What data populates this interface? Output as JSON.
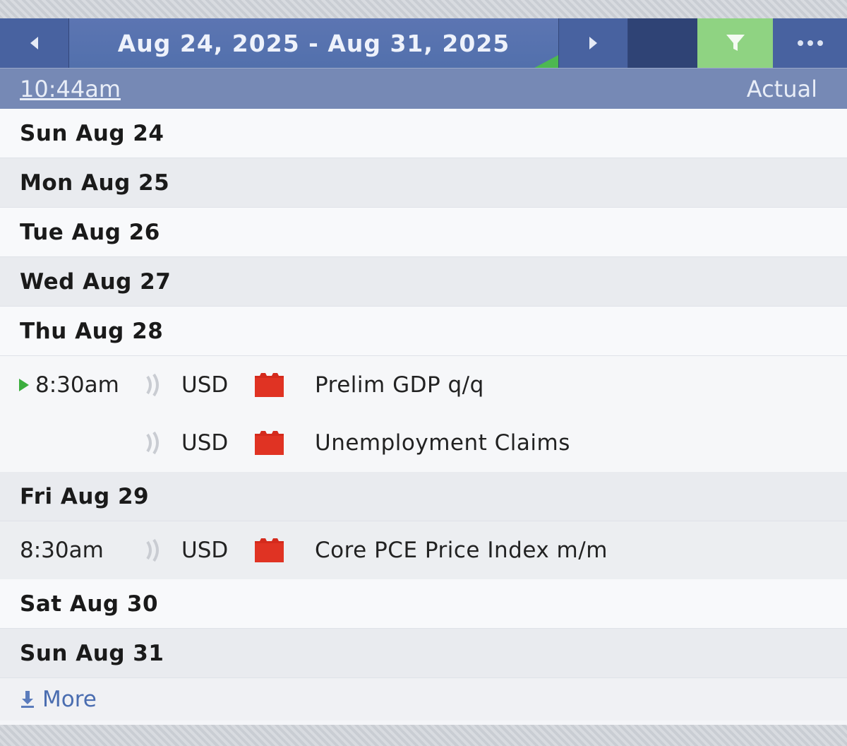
{
  "header": {
    "date_range": "Aug 24, 2025 - Aug 31, 2025",
    "icons": [
      "left-arrow-icon",
      "right-arrow-icon",
      "filter-icon",
      "more-dots-icon"
    ]
  },
  "subheader": {
    "current_time": "10:44am",
    "column_label": "Actual"
  },
  "days": [
    {
      "label": "Sun Aug 24"
    },
    {
      "label": "Mon Aug 25"
    },
    {
      "label": "Tue Aug 26"
    },
    {
      "label": "Wed Aug 27"
    },
    {
      "label": "Thu Aug 28"
    },
    {
      "label": "Fri Aug 29"
    },
    {
      "label": "Sat Aug 30"
    },
    {
      "label": "Sun Aug 31"
    }
  ],
  "events": [
    {
      "day": "Thu Aug 28",
      "time": "8:30am",
      "currency": "USD",
      "impact": "high",
      "title": "Prelim GDP q/q"
    },
    {
      "day": "Thu Aug 28",
      "time": "",
      "currency": "USD",
      "impact": "high",
      "title": "Unemployment Claims"
    },
    {
      "day": "Fri Aug 29",
      "time": "8:30am",
      "currency": "USD",
      "impact": "high",
      "title": "Core PCE Price Index m/m"
    }
  ],
  "footer": {
    "more_label": "More"
  },
  "colors": {
    "header_blue": "#5270ac",
    "filter_green": "#8fd382",
    "impact_red": "#d42a1c",
    "play_green": "#3cae3e",
    "link_blue": "#4a6db0"
  }
}
